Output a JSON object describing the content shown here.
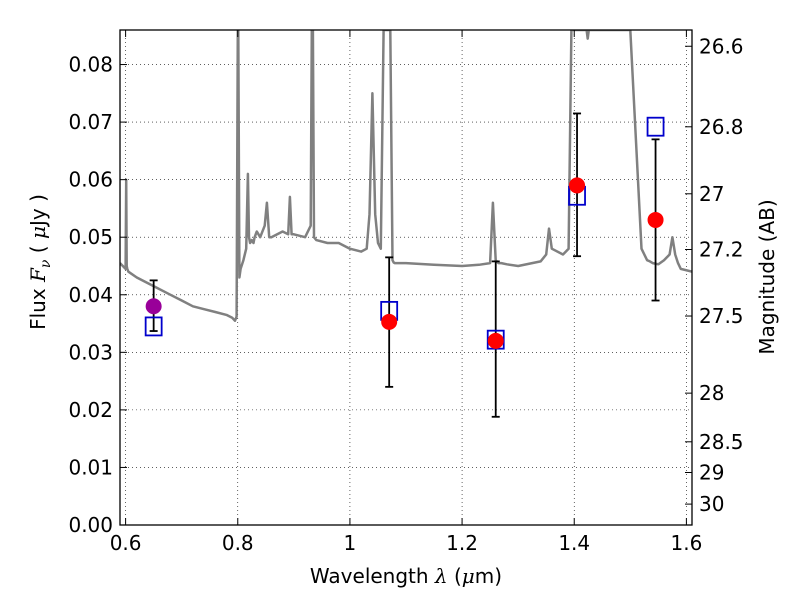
{
  "chart_data": {
    "type": "scatter",
    "title": "",
    "xlabel": "Wavelength  λ (μm)",
    "xlabel_parts": {
      "prefix": "Wavelength  ",
      "symbol": "λ",
      "suffix_open": " (",
      "unit_greek": "μ",
      "unit_rest": "m)"
    },
    "ylabel_left": "Flux  Fν  ( μJy )",
    "ylabel_left_parts": {
      "word": "Flux",
      "symbol": "F",
      "subscript": "ν",
      "open": "( ",
      "unit_greek": "μ",
      "unit_rest": "Jy",
      "close": " )"
    },
    "ylabel_right": "Magnitude (AB)",
    "xlim": [
      0.59,
      1.61
    ],
    "ylim": [
      0.0,
      0.086
    ],
    "grid": true,
    "x_ticks": [
      {
        "value": 0.6,
        "label": "0.6"
      },
      {
        "value": 0.8,
        "label": "0.8"
      },
      {
        "value": 1.0,
        "label": "1"
      },
      {
        "value": 1.2,
        "label": "1.2"
      },
      {
        "value": 1.4,
        "label": "1.4"
      },
      {
        "value": 1.6,
        "label": "1.6"
      }
    ],
    "y_ticks": [
      {
        "value": 0.0,
        "label": "0.00"
      },
      {
        "value": 0.01,
        "label": "0.01"
      },
      {
        "value": 0.02,
        "label": "0.02"
      },
      {
        "value": 0.03,
        "label": "0.03"
      },
      {
        "value": 0.04,
        "label": "0.04"
      },
      {
        "value": 0.05,
        "label": "0.05"
      },
      {
        "value": 0.06,
        "label": "0.06"
      },
      {
        "value": 0.07,
        "label": "0.07"
      },
      {
        "value": 0.08,
        "label": "0.08"
      }
    ],
    "right_ticks": [
      {
        "mag": 26.6,
        "label": "26.6"
      },
      {
        "mag": 26.8,
        "label": "26.8"
      },
      {
        "mag": 27.0,
        "label": "27"
      },
      {
        "mag": 27.2,
        "label": "27.2"
      },
      {
        "mag": 27.5,
        "label": "27.5"
      },
      {
        "mag": 28.0,
        "label": "28"
      },
      {
        "mag": 28.5,
        "label": "28.5"
      },
      {
        "mag": 29.0,
        "label": "29"
      },
      {
        "mag": 30.0,
        "label": "30"
      }
    ],
    "model_spectrum": {
      "name": "model SED",
      "color": "#808080",
      "x": [
        0.59,
        0.6,
        0.601,
        0.602,
        0.603,
        0.605,
        0.62,
        0.65,
        0.68,
        0.7,
        0.72,
        0.74,
        0.76,
        0.78,
        0.79,
        0.795,
        0.798,
        0.8,
        0.801,
        0.803,
        0.805,
        0.81,
        0.815,
        0.818,
        0.82,
        0.822,
        0.825,
        0.828,
        0.83,
        0.834,
        0.84,
        0.848,
        0.852,
        0.856,
        0.86,
        0.88,
        0.89,
        0.893,
        0.896,
        0.9,
        0.92,
        0.93,
        0.932,
        0.934,
        0.936,
        0.94,
        0.96,
        0.98,
        1.0,
        1.02,
        1.03,
        1.035,
        1.04,
        1.045,
        1.05,
        1.055,
        1.06,
        1.068,
        1.072,
        1.076,
        1.078,
        1.08,
        1.085,
        1.1,
        1.15,
        1.2,
        1.23,
        1.25,
        1.255,
        1.26,
        1.265,
        1.27,
        1.28,
        1.3,
        1.34,
        1.35,
        1.355,
        1.36,
        1.38,
        1.39,
        1.395,
        1.398,
        1.4,
        1.41,
        1.42,
        1.422,
        1.424,
        1.426,
        1.43,
        1.44,
        1.47,
        1.5,
        1.52,
        1.53,
        1.535,
        1.54,
        1.55,
        1.56,
        1.57,
        1.575,
        1.58,
        1.585,
        1.59,
        1.61
      ],
      "y": [
        0.0455,
        0.0445,
        0.06,
        0.045,
        0.0445,
        0.044,
        0.043,
        0.0415,
        0.04,
        0.039,
        0.038,
        0.0375,
        0.037,
        0.0365,
        0.036,
        0.0355,
        0.0362,
        0.086,
        0.086,
        0.043,
        0.0445,
        0.046,
        0.048,
        0.061,
        0.05,
        0.049,
        0.0495,
        0.049,
        0.05,
        0.051,
        0.05,
        0.052,
        0.056,
        0.05,
        0.05,
        0.051,
        0.0505,
        0.057,
        0.0505,
        0.0505,
        0.05,
        0.052,
        0.086,
        0.086,
        0.05,
        0.0495,
        0.049,
        0.049,
        0.048,
        0.0475,
        0.048,
        0.054,
        0.075,
        0.054,
        0.049,
        0.048,
        0.086,
        0.086,
        0.086,
        0.046,
        0.0456,
        0.0455,
        0.0455,
        0.0455,
        0.0452,
        0.045,
        0.0452,
        0.0455,
        0.056,
        0.046,
        0.0455,
        0.0455,
        0.0453,
        0.045,
        0.0458,
        0.047,
        0.0515,
        0.048,
        0.047,
        0.048,
        0.086,
        0.086,
        0.086,
        0.086,
        0.086,
        0.086,
        0.0845,
        0.086,
        0.086,
        0.086,
        0.086,
        0.086,
        0.048,
        0.046,
        0.0458,
        0.0455,
        0.0453,
        0.046,
        0.047,
        0.05,
        0.047,
        0.0455,
        0.0445,
        0.044
      ]
    },
    "photometry": [
      {
        "name": "band-0.65",
        "x": 0.65,
        "y": 0.038,
        "yerr_low": 0.0337,
        "yerr_high": 0.0425,
        "model": 0.0345,
        "color": "#990099"
      },
      {
        "name": "band-1.07",
        "x": 1.07,
        "y": 0.0353,
        "yerr_low": 0.024,
        "yerr_high": 0.0465,
        "model": 0.0372,
        "color": "#ff0000"
      },
      {
        "name": "band-1.26",
        "x": 1.26,
        "y": 0.032,
        "yerr_low": 0.0188,
        "yerr_high": 0.0458,
        "model": 0.0322,
        "color": "#ff0000"
      },
      {
        "name": "band-1.405",
        "x": 1.405,
        "y": 0.059,
        "yerr_low": 0.0467,
        "yerr_high": 0.0715,
        "model": 0.0572,
        "color": "#ff0000"
      },
      {
        "name": "band-1.545",
        "x": 1.545,
        "y": 0.053,
        "yerr_low": 0.039,
        "yerr_high": 0.067,
        "model": 0.0692,
        "color": "#ff0000"
      }
    ],
    "model_point_color": "#0000cc",
    "errorbar_color": "#000000"
  }
}
